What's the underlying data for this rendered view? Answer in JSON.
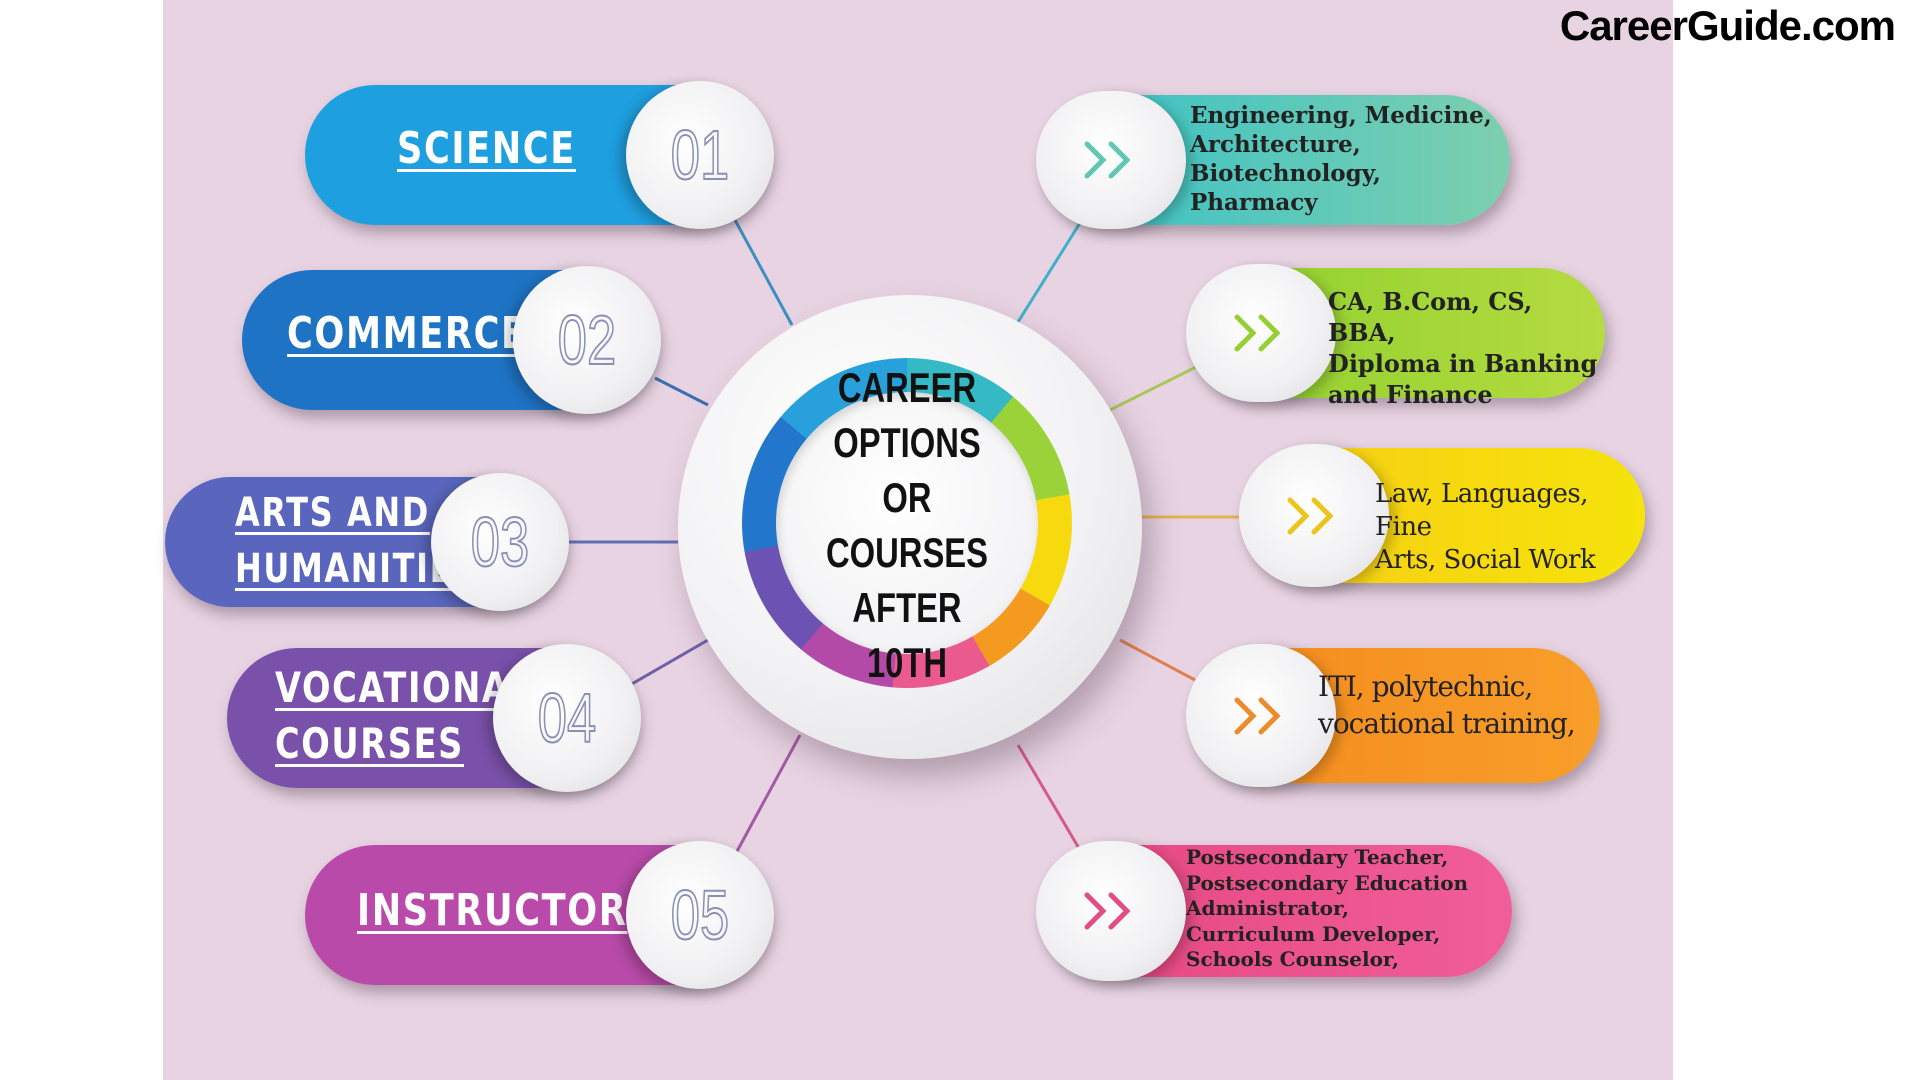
{
  "brand": "CareerGuide.com",
  "center": {
    "title": "CAREER\nOPTIONS OR\nCOURSES\nAFTER 10TH"
  },
  "streams": [
    {
      "label": "SCIENCE",
      "number": "01",
      "color": "#1e9fe0"
    },
    {
      "label": "COMMERCE",
      "number": "02",
      "color": "#1f73c4"
    },
    {
      "label": "ARTS AND\nHUMANITIES",
      "number": "03",
      "color": "#5a66bd"
    },
    {
      "label": "VOCATIONAL\nCOURSES",
      "number": "04",
      "color": "#7a51aa"
    },
    {
      "label": "INSTRUCTOR",
      "number": "05",
      "color": "#b94aa9"
    }
  ],
  "careers": [
    {
      "text": "Engineering, Medicine,\nArchitecture,\nBiotechnology,\nPharmacy",
      "color": "#34c0c8",
      "color2": "#7dcfae",
      "chevron_color": "#5fc7b3"
    },
    {
      "text": "CA, B.Com, CS, BBA,\nDiploma in Banking\nand Finance",
      "color": "#8ccf2e",
      "color2": "#b5db3f",
      "chevron_color": "#96cf34"
    },
    {
      "text": "Law, Languages, Fine\nArts, Social Work",
      "color": "#f7cc15",
      "color2": "#f5e30a",
      "chevron_color": "#ecc41c"
    },
    {
      "text": "ITI, polytechnic,\nvocational training,",
      "color": "#f48a1c",
      "color2": "#f89e2a",
      "chevron_color": "#ee8a2a"
    },
    {
      "text": "Postsecondary Teacher,\nPostsecondary Education\nAdministrator,\nCurriculum Developer,\nSchools Counselor,",
      "color": "#e6457f",
      "color2": "#f05e9a",
      "chevron_color": "#e24d86"
    }
  ]
}
